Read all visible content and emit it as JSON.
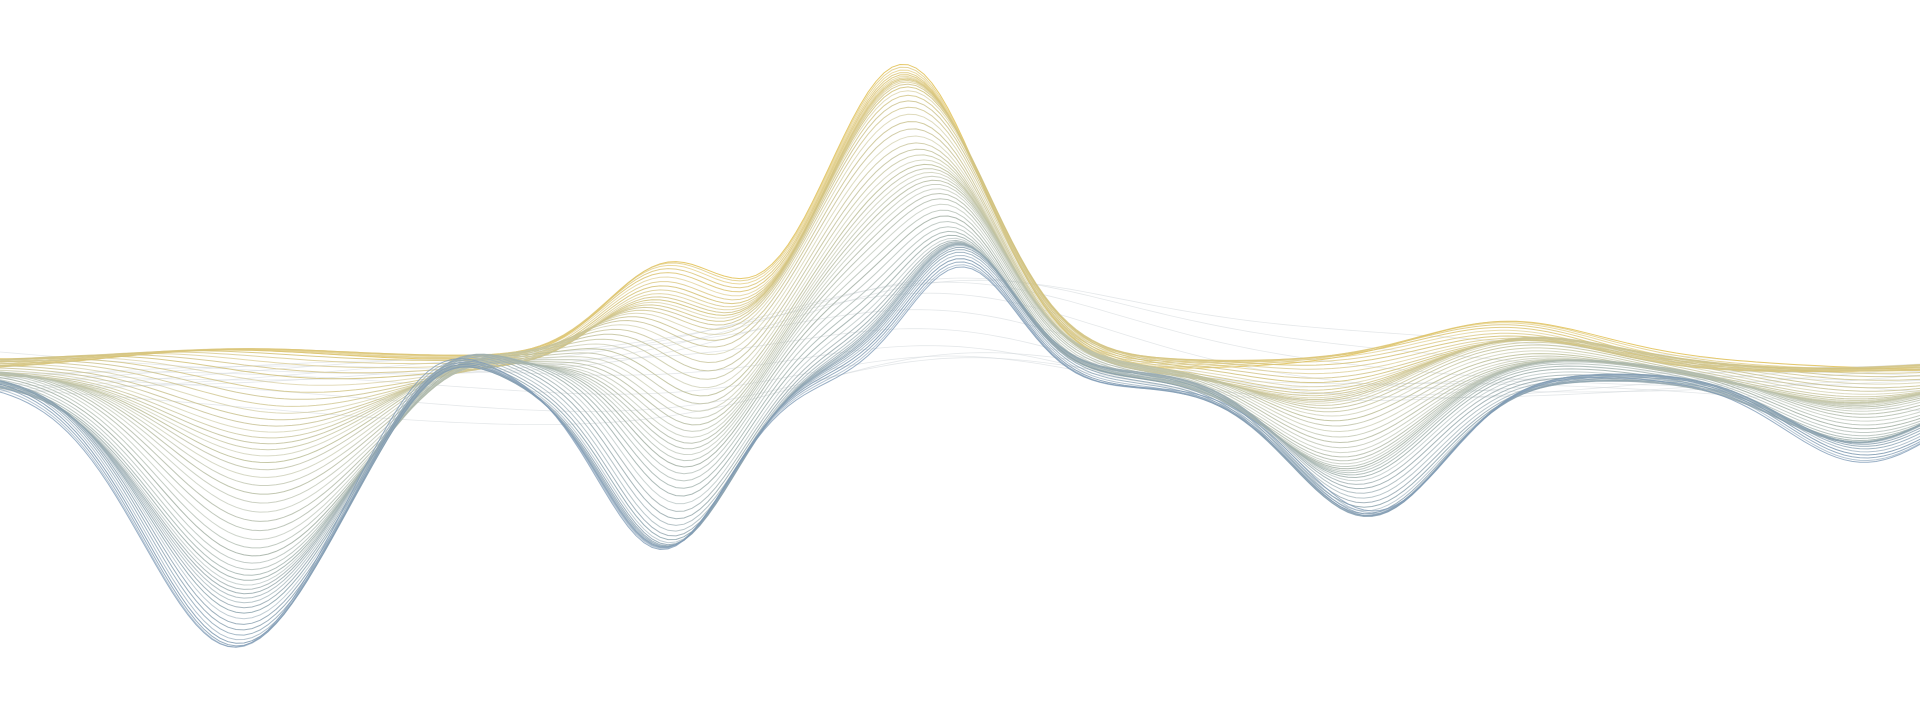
{
  "artwork": {
    "kind": "abstract-line-wave",
    "background_color": "#ffffff",
    "palette": {
      "gold": "#e3c35a",
      "sage": "#b9bfa2",
      "steel_blue": "#6f8fae",
      "pale_gray": "#d4d8dc"
    },
    "line_count": 56
  }
}
